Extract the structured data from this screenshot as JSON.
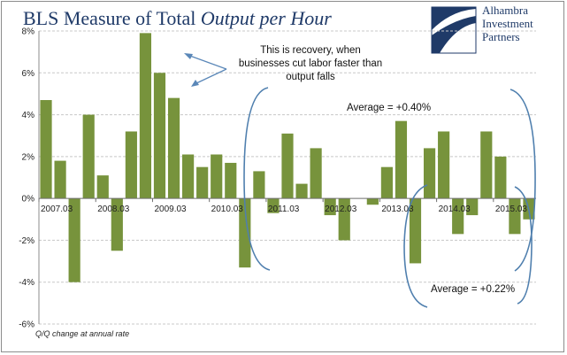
{
  "title": {
    "plain": "BLS Measure of Total ",
    "italic": "Output per Hour"
  },
  "logo": {
    "icon": "alhambra-logo-mark",
    "line1": "Alhambra",
    "line2": "Investment",
    "line3": "Partners",
    "color": "#1f3a68"
  },
  "footnote": "Q/Q change at annual rate",
  "annotations": {
    "recovery_line1": "This is recovery, when",
    "recovery_line2": "businesses cut labor faster than",
    "recovery_line3": "output falls",
    "average_1": "Average = +0.40%",
    "average_2": "Average = +0.22%"
  },
  "colors": {
    "bar": "#77933c",
    "grid": "#c8c8c8",
    "bracket": "#4f7fae",
    "arrow": "#5a87b8"
  },
  "chart_data": {
    "type": "bar",
    "ylim": [
      -6,
      8
    ],
    "y_tick_values": [
      -6,
      -4,
      -2,
      0,
      2,
      4,
      6,
      8
    ],
    "y_tick_labels": [
      "-6%",
      "-4%",
      "-2%",
      "0%",
      "2%",
      "4%",
      "6%",
      "8%"
    ],
    "x_tick_labels": [
      "2007.03",
      "2008.03",
      "2009.03",
      "2010.03",
      "2011.03",
      "2012.03",
      "2013.03",
      "2014.03",
      "2015.03"
    ],
    "grid": true,
    "series": [
      {
        "values": [
          4.7,
          1.8,
          -4.0,
          4.0,
          1.1,
          -2.5,
          3.2,
          7.9,
          6.0,
          4.8,
          2.1,
          1.5,
          2.1,
          1.7,
          -3.3,
          1.3,
          -0.7,
          3.1,
          0.7,
          2.4,
          -0.8,
          -2.0,
          0.0,
          -0.3,
          1.5,
          3.7,
          -3.1,
          2.4,
          3.2,
          -1.7,
          -0.8,
          3.2,
          2.0,
          -1.7,
          -1.0
        ]
      }
    ]
  }
}
